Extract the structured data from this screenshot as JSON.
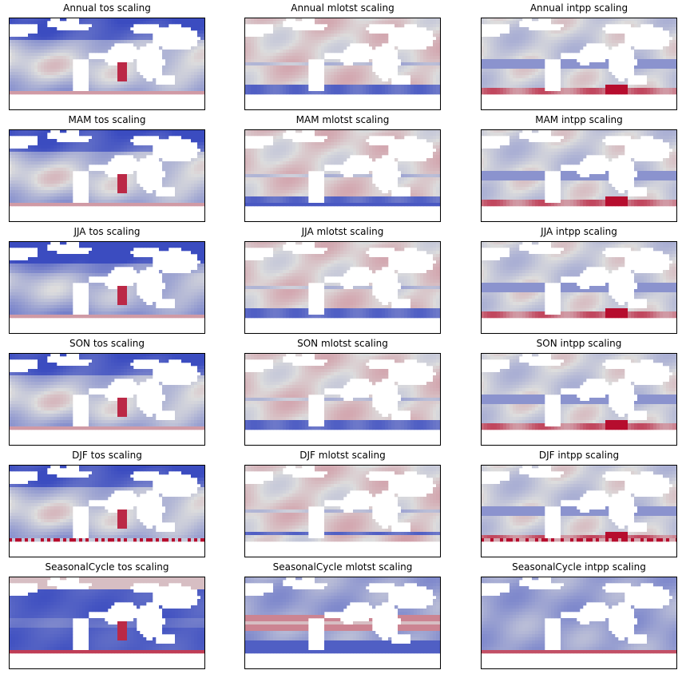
{
  "chart_data": {
    "type": "heatmap",
    "layout": "6 rows x 3 columns of global map panels",
    "colormap": "coolwarm",
    "colors": {
      "low": "#3b4cc0",
      "mid": "#dddddd",
      "high": "#b40426",
      "land": "#ffffff",
      "frame": "#000000"
    },
    "variables": [
      "tos",
      "mlotst",
      "intpp"
    ],
    "seasons": [
      "Annual",
      "MAM",
      "JJA",
      "SON",
      "DJF",
      "SeasonalCycle"
    ],
    "panels": [
      {
        "title": "Annual tos scaling",
        "season": "Annual",
        "variable": "tos"
      },
      {
        "title": "Annual mlotst scaling",
        "season": "Annual",
        "variable": "mlotst"
      },
      {
        "title": "Annual intpp scaling",
        "season": "Annual",
        "variable": "intpp"
      },
      {
        "title": "MAM tos scaling",
        "season": "MAM",
        "variable": "tos"
      },
      {
        "title": "MAM mlotst scaling",
        "season": "MAM",
        "variable": "mlotst"
      },
      {
        "title": "MAM intpp scaling",
        "season": "MAM",
        "variable": "intpp"
      },
      {
        "title": "JJA tos scaling",
        "season": "JJA",
        "variable": "tos"
      },
      {
        "title": "JJA mlotst scaling",
        "season": "JJA",
        "variable": "mlotst"
      },
      {
        "title": "JJA intpp scaling",
        "season": "JJA",
        "variable": "intpp"
      },
      {
        "title": "SON tos scaling",
        "season": "SON",
        "variable": "tos"
      },
      {
        "title": "SON mlotst scaling",
        "season": "SON",
        "variable": "mlotst"
      },
      {
        "title": "SON intpp scaling",
        "season": "SON",
        "variable": "intpp"
      },
      {
        "title": "DJF tos scaling",
        "season": "DJF",
        "variable": "tos"
      },
      {
        "title": "DJF mlotst scaling",
        "season": "DJF",
        "variable": "mlotst"
      },
      {
        "title": "DJF intpp scaling",
        "season": "DJF",
        "variable": "intpp"
      },
      {
        "title": "SeasonalCycle tos scaling",
        "season": "SeasonalCycle",
        "variable": "tos"
      },
      {
        "title": "SeasonalCycle mlotst scaling",
        "season": "SeasonalCycle",
        "variable": "mlotst"
      },
      {
        "title": "SeasonalCycle intpp scaling",
        "season": "SeasonalCycle",
        "variable": "intpp"
      }
    ],
    "axes_ticks": false
  }
}
